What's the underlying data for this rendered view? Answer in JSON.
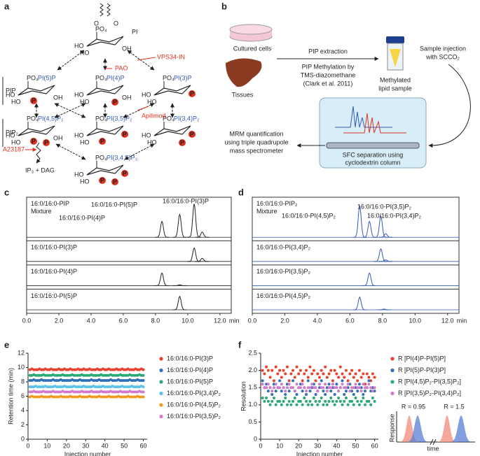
{
  "pathway": {
    "panel": "a",
    "head": "PI",
    "nodes": [
      "PI(5)P",
      "PI(4)P",
      "PI(3)P",
      "PI(4,5)P₂",
      "PI(3,5)P₂",
      "PI(3,4)P₂",
      "PI(3,4,5)P₃"
    ],
    "group_labels": [
      "PIP",
      "PIP₂"
    ],
    "inhibitors": [
      "VPS34-IN",
      "PAO",
      "Apilimod",
      "A23187"
    ],
    "products": "IP₃ + DAG",
    "ring": {
      "hydroxyl_left": "HO",
      "hydroxyl_right": "OH",
      "phosphate": "PO₄",
      "phospho": "P",
      "oxygen": "O"
    }
  },
  "workflow": {
    "panel": "b",
    "sources": [
      "Cultured cells",
      "Tissues"
    ],
    "extraction": "PIP extraction",
    "methylation": [
      "PIP Methylation by",
      "TMS-diazomethane",
      "(Clark et al. 2011)"
    ],
    "sample": [
      "Methylated",
      "lipid sample"
    ],
    "injection": [
      "Sample injection",
      "with SCCO₂"
    ],
    "separation": [
      "SFC separation using",
      "cyclodextrin column"
    ],
    "detection": [
      "MRM quantification",
      "using triple quadrupole",
      "mass spectrometer"
    ]
  },
  "chart_data": [
    {
      "type": "chromatogram",
      "panel": "c",
      "x_label": "min",
      "xlim": [
        0,
        12.7
      ],
      "label_color": "#222222",
      "xticks": [
        {
          "value": 0,
          "label": "0.0"
        },
        {
          "value": 2,
          "label": "2.0"
        },
        {
          "value": 4,
          "label": "4.0"
        },
        {
          "value": 6,
          "label": "6.0"
        },
        {
          "value": 8,
          "label": "8.0"
        },
        {
          "value": 10,
          "label": "10.0"
        },
        {
          "value": 12,
          "label": "12.0"
        }
      ],
      "annotations": [
        "16:0/16:0-PI(5)P",
        "16:0/16:0-PI(3)P",
        "16:0/16:0-PI(4)P"
      ],
      "series": [
        {
          "name": "16:0/16:0-PIP Mixture",
          "color": "#222222",
          "x": [
            8.4,
            9.5,
            10.4,
            10.9
          ],
          "values": [
            0.45,
            0.65,
            0.95,
            0.15
          ]
        },
        {
          "name": "16:0/16:0-PI(3)P",
          "color": "#222222",
          "x": [
            10.4,
            10.9
          ],
          "values": [
            0.85,
            0.2
          ]
        },
        {
          "name": "16:0/16:0-PI(4)P",
          "color": "#222222",
          "x": [
            8.4,
            9.5
          ],
          "values": [
            0.8,
            0.05
          ]
        },
        {
          "name": "16:0/16:0-PI(5)P",
          "color": "#222222",
          "x": [
            9.5
          ],
          "values": [
            0.85
          ]
        }
      ]
    },
    {
      "type": "chromatogram",
      "panel": "d",
      "x_label": "min",
      "xlim": [
        0,
        12.7
      ],
      "label_color": "#3559b8",
      "xticks": [
        {
          "value": 0,
          "label": "0.0"
        },
        {
          "value": 2,
          "label": "2.0"
        },
        {
          "value": 4,
          "label": "4.0"
        },
        {
          "value": 6,
          "label": "6.0"
        },
        {
          "value": 8,
          "label": "8.0"
        },
        {
          "value": 10,
          "label": "10.0"
        },
        {
          "value": 12,
          "label": "12.0"
        }
      ],
      "annotations": [
        "16:0/16:0-PI(3,5)P₂",
        "16:0/16:0-PI(4,5)P₂",
        "16:0/16:0-PI(3,4)P₂"
      ],
      "series": [
        {
          "name": "16:0/16:0-PIP₂ Mixture",
          "color": "#3559b8",
          "x": [
            6.6,
            7.2,
            7.9,
            8.2
          ],
          "values": [
            0.9,
            0.45,
            0.6,
            0.1
          ]
        },
        {
          "name": "16:0/16:0-PI(3,4)P₂",
          "color": "#3559b8",
          "x": [
            7.9,
            8.2
          ],
          "values": [
            0.8,
            0.1
          ]
        },
        {
          "name": "16:0/16:0-PI(3,5)P₂",
          "color": "#3559b8",
          "x": [
            7.2
          ],
          "values": [
            0.8
          ]
        },
        {
          "name": "16:0/16:0-PI(4,5)P₂",
          "color": "#3559b8",
          "x": [
            6.6,
            8.1
          ],
          "values": [
            0.8,
            0.05
          ]
        }
      ]
    },
    {
      "type": "scatter",
      "panel": "e",
      "x_label": "Injection number",
      "y_label": "Retention time (min)",
      "xlim": [
        0,
        62
      ],
      "ylim": [
        0,
        12
      ],
      "xticks": [
        0,
        10,
        20,
        30,
        40,
        50,
        60
      ],
      "yticks": [
        0,
        2,
        4,
        6,
        8,
        10,
        12
      ],
      "x": [
        1,
        2,
        3,
        4,
        5,
        6,
        7,
        8,
        9,
        10,
        11,
        12,
        13,
        14,
        15,
        16,
        17,
        18,
        19,
        20,
        21,
        22,
        23,
        24,
        25,
        26,
        27,
        28,
        29,
        30,
        31,
        32,
        33,
        34,
        35,
        36,
        37,
        38,
        39,
        40,
        41,
        42,
        43,
        44,
        45,
        46,
        47,
        48,
        49,
        50,
        51,
        52,
        53,
        54,
        55,
        56,
        57,
        58,
        59,
        60
      ],
      "series": [
        {
          "name": "16:0/16:0-PI(3)P",
          "color": "#e8402a",
          "values": [
            9.7,
            9.8,
            9.7,
            9.7,
            9.7,
            9.8,
            9.7,
            9.7,
            9.8,
            9.7,
            9.7,
            9.8,
            9.7,
            9.7,
            9.7,
            9.8,
            9.7,
            9.7,
            9.8,
            9.7,
            9.7,
            9.8,
            9.7,
            9.7,
            9.7,
            9.8,
            9.7,
            9.7,
            9.8,
            9.7,
            9.7,
            9.8,
            9.7,
            9.7,
            9.7,
            9.8,
            9.7,
            9.7,
            9.8,
            9.7,
            9.7,
            9.8,
            9.7,
            9.7,
            9.7,
            9.8,
            9.7,
            9.7,
            9.8,
            9.7,
            9.7,
            9.8,
            9.7,
            9.7,
            9.7,
            9.8,
            9.7,
            9.7,
            9.8,
            9.7
          ]
        },
        {
          "name": "16:0/16:0-PI(4)P",
          "color": "#2e6fb7",
          "values": [
            8.2,
            8.2,
            8.3,
            8.2,
            8.2,
            8.2,
            8.3,
            8.2,
            8.2,
            8.2,
            8.2,
            8.2,
            8.3,
            8.2,
            8.2,
            8.2,
            8.3,
            8.2,
            8.2,
            8.2,
            8.2,
            8.2,
            8.3,
            8.2,
            8.2,
            8.2,
            8.3,
            8.2,
            8.2,
            8.2,
            8.2,
            8.2,
            8.3,
            8.2,
            8.2,
            8.2,
            8.3,
            8.2,
            8.2,
            8.2,
            8.2,
            8.2,
            8.3,
            8.2,
            8.2,
            8.2,
            8.3,
            8.2,
            8.2,
            8.2,
            8.2,
            8.2,
            8.3,
            8.2,
            8.2,
            8.2,
            8.3,
            8.2,
            8.2,
            8.2
          ]
        },
        {
          "name": "16:0/16:0-PI(5)P",
          "color": "#2aa876",
          "values": [
            8.9,
            8.9,
            9.0,
            8.9,
            8.9,
            8.9,
            8.9,
            9.0,
            8.9,
            8.9,
            8.9,
            8.9,
            9.0,
            8.9,
            8.9,
            8.9,
            8.9,
            9.0,
            8.9,
            8.9,
            8.9,
            8.9,
            9.0,
            8.9,
            8.9,
            8.9,
            8.9,
            9.0,
            8.9,
            8.9,
            8.9,
            8.9,
            9.0,
            8.9,
            8.9,
            8.9,
            8.9,
            9.0,
            8.9,
            8.9,
            8.9,
            8.9,
            9.0,
            8.9,
            8.9,
            8.9,
            8.9,
            9.0,
            8.9,
            8.9,
            8.9,
            8.9,
            9.0,
            8.9,
            8.9,
            8.9,
            8.9,
            9.0,
            8.9,
            8.9
          ]
        },
        {
          "name": "16:0/16:0-PI(3,4)P₂",
          "color": "#5bc3e8",
          "values": [
            7.3,
            7.3,
            7.3,
            7.4,
            7.3,
            7.3,
            7.3,
            7.3,
            7.4,
            7.3,
            7.3,
            7.3,
            7.3,
            7.4,
            7.3,
            7.3,
            7.3,
            7.3,
            7.4,
            7.3,
            7.3,
            7.3,
            7.3,
            7.4,
            7.3,
            7.3,
            7.3,
            7.3,
            7.4,
            7.3,
            7.3,
            7.3,
            7.3,
            7.4,
            7.3,
            7.3,
            7.3,
            7.3,
            7.4,
            7.3,
            7.3,
            7.3,
            7.3,
            7.4,
            7.3,
            7.3,
            7.3,
            7.3,
            7.4,
            7.3,
            7.3,
            7.3,
            7.3,
            7.4,
            7.3,
            7.3,
            7.3,
            7.3,
            7.4,
            7.3
          ]
        },
        {
          "name": "16:0/16:0-PI(4,5)P₂",
          "color": "#f29a1f",
          "values": [
            5.9,
            6.0,
            5.9,
            5.9,
            5.9,
            5.9,
            6.0,
            5.9,
            5.9,
            5.9,
            5.9,
            6.0,
            5.9,
            5.9,
            5.9,
            5.9,
            6.0,
            5.9,
            5.9,
            5.9,
            5.9,
            6.0,
            5.9,
            5.9,
            5.9,
            5.9,
            6.0,
            5.9,
            5.9,
            5.9,
            5.9,
            6.0,
            5.9,
            5.9,
            5.9,
            5.9,
            6.0,
            5.9,
            5.9,
            5.9,
            5.9,
            6.0,
            5.9,
            5.9,
            5.9,
            5.9,
            6.0,
            5.9,
            5.9,
            5.9,
            5.9,
            6.0,
            5.9,
            5.9,
            5.9,
            5.9,
            6.0,
            5.9,
            5.9,
            5.9
          ]
        },
        {
          "name": "16:0/16:0-PI(3,5)P₂",
          "color": "#d27ac9",
          "values": [
            6.6,
            6.6,
            6.7,
            6.6,
            6.6,
            6.6,
            6.6,
            6.7,
            6.6,
            6.6,
            6.6,
            6.6,
            6.7,
            6.6,
            6.6,
            6.6,
            6.6,
            6.7,
            6.6,
            6.6,
            6.6,
            6.6,
            6.7,
            6.6,
            6.6,
            6.6,
            6.6,
            6.7,
            6.6,
            6.6,
            6.6,
            6.6,
            6.7,
            6.6,
            6.6,
            6.6,
            6.6,
            6.7,
            6.6,
            6.6,
            6.6,
            6.6,
            6.7,
            6.6,
            6.6,
            6.6,
            6.6,
            6.7,
            6.6,
            6.6,
            6.6,
            6.6,
            6.7,
            6.6,
            6.6,
            6.6,
            6.6,
            6.7,
            6.6,
            6.6
          ]
        }
      ]
    },
    {
      "type": "scatter",
      "panel": "f",
      "x_label": "Injection number",
      "y_label": "Resolution",
      "xlim": [
        0,
        62
      ],
      "ylim": [
        0,
        2.5
      ],
      "xticks": [
        0,
        10,
        20,
        30,
        40,
        50,
        60
      ],
      "yticks": [
        0,
        0.5,
        {
          "value": 1,
          "label": "1.0"
        },
        1.5,
        {
          "value": 2,
          "label": "2.0"
        },
        2.5
      ],
      "inset": {
        "labels": [
          "R = 0.95",
          "R = 1.5"
        ],
        "y_label": "Response",
        "x_label": "time"
      },
      "x": [
        1,
        2,
        3,
        4,
        5,
        6,
        7,
        8,
        9,
        10,
        11,
        12,
        13,
        14,
        15,
        16,
        17,
        18,
        19,
        20,
        21,
        22,
        23,
        24,
        25,
        26,
        27,
        28,
        29,
        30,
        31,
        32,
        33,
        34,
        35,
        36,
        37,
        38,
        39,
        40,
        41,
        42,
        43,
        44,
        45,
        46,
        47,
        48,
        49,
        50,
        51,
        52,
        53,
        54,
        55,
        56,
        57,
        58,
        59,
        60
      ],
      "series": [
        {
          "name": "R [PI(4)P-PI(5)P]",
          "color": "#e8402a",
          "values": [
            2.0,
            1.9,
            2.1,
            2.0,
            1.8,
            2.0,
            1.7,
            2.1,
            1.9,
            2.0,
            1.8,
            2.0,
            1.9,
            2.1,
            1.7,
            1.9,
            2.0,
            1.8,
            2.1,
            1.9,
            2.0,
            1.7,
            1.9,
            2.0,
            1.8,
            2.1,
            1.9,
            2.0,
            1.7,
            1.9,
            1.8,
            2.0,
            1.9,
            2.1,
            1.8,
            1.9,
            2.0,
            1.7,
            2.0,
            1.9,
            1.8,
            2.1,
            1.9,
            1.8,
            2.0,
            1.7,
            1.9,
            2.0,
            1.8,
            1.9,
            1.7,
            2.0,
            1.8,
            1.9,
            1.6,
            1.9,
            1.8,
            1.7,
            1.9,
            1.8
          ]
        },
        {
          "name": "R [PI(5)P-PI(3)P]",
          "color": "#2e6fb7",
          "values": [
            1.7,
            1.5,
            1.6,
            1.4,
            1.5,
            1.3,
            1.6,
            1.4,
            1.5,
            1.7,
            1.4,
            1.5,
            1.3,
            1.6,
            1.4,
            1.5,
            1.7,
            1.4,
            1.3,
            1.5,
            1.6,
            1.4,
            1.5,
            1.3,
            1.7,
            1.4,
            1.5,
            1.6,
            1.3,
            1.4,
            1.5,
            1.7,
            1.4,
            1.3,
            1.5,
            1.6,
            1.4,
            1.5,
            1.3,
            1.6,
            1.4,
            1.5,
            1.7,
            1.3,
            1.4,
            1.5,
            1.6,
            1.4,
            1.3,
            1.5,
            1.4,
            1.6,
            1.5,
            1.3,
            1.4,
            1.5,
            1.7,
            1.4,
            1.5,
            1.4
          ]
        },
        {
          "name": "R [PI(4,5)P₂-PI(3,5)P₂]",
          "color": "#2aa876",
          "values": [
            1.2,
            1.1,
            1.2,
            1.1,
            1.0,
            1.1,
            1.2,
            1.0,
            1.1,
            1.1,
            1.0,
            1.1,
            1.2,
            1.0,
            1.1,
            1.0,
            1.1,
            1.2,
            1.0,
            1.1,
            1.1,
            1.0,
            1.2,
            1.1,
            1.0,
            1.1,
            1.0,
            1.2,
            1.1,
            1.0,
            1.1,
            1.2,
            1.0,
            1.1,
            1.0,
            1.1,
            1.2,
            1.1,
            1.0,
            1.1,
            1.2,
            1.1,
            1.0,
            1.1,
            1.2,
            1.0,
            1.1,
            1.1,
            1.0,
            1.2,
            1.1,
            1.0,
            1.1,
            1.2,
            1.0,
            1.1,
            1.1,
            1.0,
            1.2,
            1.1
          ]
        },
        {
          "name": "R [PI(3,5)P₂-PI(3,4)P₂]",
          "color": "#d27ac9",
          "values": [
            1.6,
            1.5,
            1.5,
            1.6,
            1.5,
            1.4,
            1.5,
            1.6,
            1.5,
            1.5,
            1.6,
            1.5,
            1.4,
            1.5,
            1.6,
            1.5,
            1.5,
            1.4,
            1.6,
            1.5,
            1.5,
            1.6,
            1.5,
            1.4,
            1.5,
            1.5,
            1.6,
            1.5,
            1.5,
            1.4,
            1.6,
            1.5,
            1.5,
            1.6,
            1.4,
            1.5,
            1.5,
            1.6,
            1.5,
            1.5,
            1.4,
            1.5,
            1.6,
            1.5,
            1.5,
            1.6,
            1.4,
            1.5,
            1.5,
            1.6,
            1.5,
            1.5,
            1.4,
            1.6,
            1.5,
            1.5,
            1.6,
            1.5,
            1.4,
            1.5
          ]
        }
      ]
    }
  ]
}
